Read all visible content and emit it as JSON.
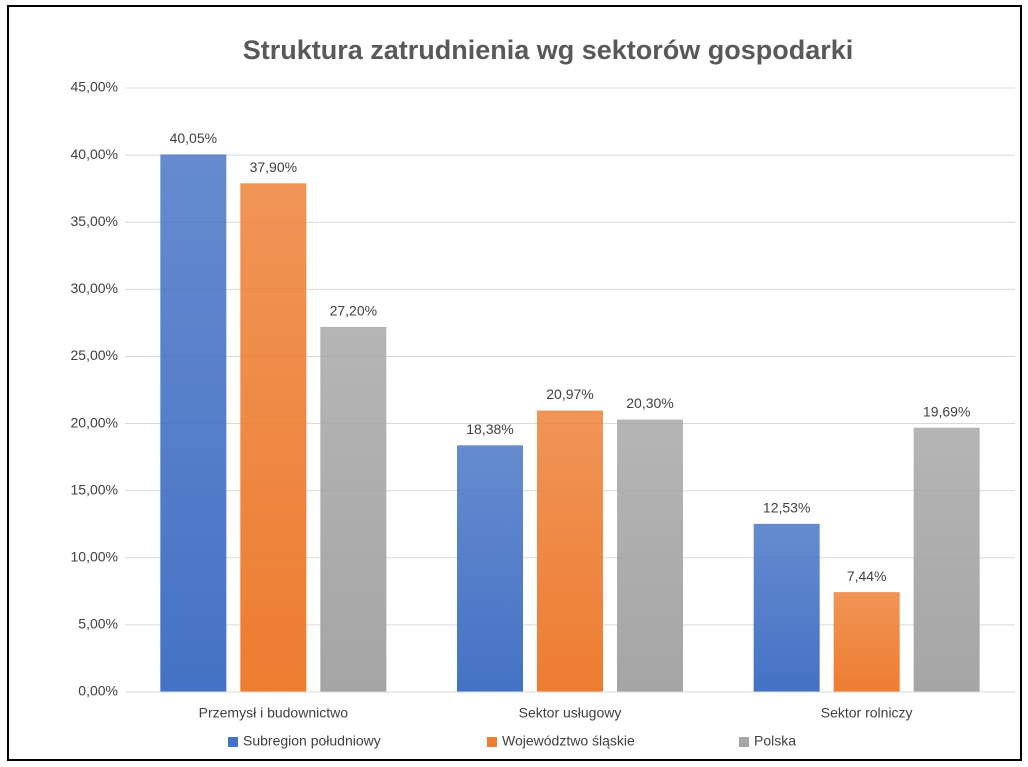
{
  "chart_data": {
    "type": "bar",
    "title": "Struktura zatrudnienia wg sektorów gospodarki",
    "categories": [
      "Przemysł i budownictwo",
      "Sektor usługowy",
      "Sektor rolniczy"
    ],
    "series": [
      {
        "name": "Subregion południowy",
        "color": "#4472c4",
        "values": [
          40.05,
          18.38,
          12.53
        ],
        "value_labels": [
          "40,05%",
          "18,38%",
          "12,53%"
        ]
      },
      {
        "name": "Województwo śląskie",
        "color": "#ed7d31",
        "values": [
          37.9,
          20.97,
          7.44
        ],
        "value_labels": [
          "37,90%",
          "20,97%",
          "7,44%"
        ]
      },
      {
        "name": "Polska",
        "color": "#a5a5a5",
        "values": [
          27.2,
          20.3,
          19.69
        ],
        "value_labels": [
          "27,20%",
          "20,30%",
          "19,69%"
        ]
      }
    ],
    "ylim": [
      0,
      45
    ],
    "yticks": [
      {
        "value": 0,
        "label": "0,00%"
      },
      {
        "value": 5,
        "label": "5,00%"
      },
      {
        "value": 10,
        "label": "10,00%"
      },
      {
        "value": 15,
        "label": "15,00%"
      },
      {
        "value": 20,
        "label": "20,00%"
      },
      {
        "value": 25,
        "label": "25,00%"
      },
      {
        "value": 30,
        "label": "30,00%"
      },
      {
        "value": 35,
        "label": "35,00%"
      },
      {
        "value": 40,
        "label": "40,00%"
      },
      {
        "value": 45,
        "label": "45,00%"
      }
    ],
    "grid": true,
    "legend": "bottom"
  }
}
